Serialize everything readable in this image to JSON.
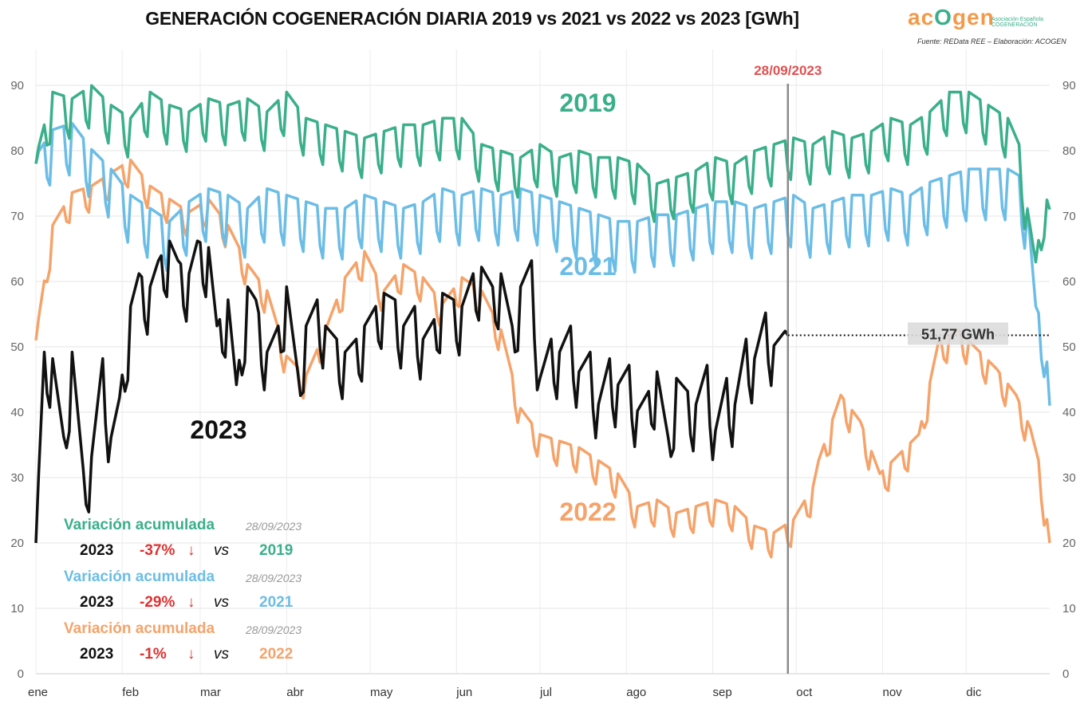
{
  "title": "GENERACIÓN COGENERACIÓN DIARIA 2019 vs 2021 vs 2022 vs 2023 [GWh]",
  "logo": {
    "text_a": "ac",
    "text_o": "O",
    "text_b": "gen",
    "subtitle": "Asociación Española COGENERACIÓN"
  },
  "source": "Fuente: REData REE – Elaboración: ACOGEN",
  "colors": {
    "y2019": "#3aaf8a",
    "y2021": "#6cbde6",
    "y2022": "#f5a36a",
    "y2023": "#111111",
    "marker": "#e05050",
    "down": "#e03030"
  },
  "chart_data": {
    "type": "line",
    "title": "GENERACIÓN COGENERACIÓN DIARIA 2019 vs 2021 vs 2022 vs 2023 [GWh]",
    "xlabel": "",
    "ylabel": "GWh",
    "ylim": [
      0,
      90
    ],
    "yticks": [
      0,
      10,
      20,
      30,
      40,
      50,
      60,
      70,
      80,
      90
    ],
    "categories": [
      "ene",
      "feb",
      "mar",
      "abr",
      "may",
      "jun",
      "jul",
      "ago",
      "sep",
      "oct",
      "nov",
      "dic"
    ],
    "x_domain_days": [
      1,
      365
    ],
    "series": [
      {
        "name": "2019",
        "x": [
          1,
          7,
          14,
          21,
          28,
          35,
          42,
          49,
          56,
          63,
          70,
          77,
          84,
          91,
          98,
          105,
          112,
          119,
          126,
          133,
          140,
          147,
          154,
          161,
          168,
          175,
          182,
          189,
          196,
          203,
          210,
          217,
          224,
          231,
          238,
          245,
          252,
          259,
          266,
          273,
          280,
          287,
          294,
          301,
          308,
          315,
          322,
          329,
          336,
          343,
          350,
          354,
          357,
          360,
          363,
          365
        ],
        "values": [
          78,
          88,
          87,
          89,
          86,
          84,
          88,
          86,
          85,
          87,
          86,
          87,
          85,
          88,
          84,
          83,
          82,
          81,
          82,
          83,
          83,
          84,
          84,
          80,
          79,
          78,
          80,
          78,
          79,
          78,
          78,
          77,
          74,
          75,
          76,
          78,
          77,
          79,
          80,
          81,
          80,
          82,
          81,
          82,
          84,
          83,
          85,
          88,
          88,
          86,
          84,
          80,
          70,
          62,
          72,
          71
        ]
      },
      {
        "name": "2021",
        "x": [
          1,
          7,
          14,
          21,
          28,
          35,
          42,
          49,
          56,
          63,
          70,
          77,
          84,
          91,
          98,
          105,
          112,
          119,
          126,
          133,
          140,
          147,
          154,
          161,
          168,
          175,
          182,
          189,
          196,
          203,
          210,
          217,
          224,
          231,
          238,
          245,
          252,
          259,
          266,
          273,
          280,
          287,
          294,
          301,
          308,
          315,
          322,
          329,
          336,
          343,
          350,
          354,
          357,
          360,
          363,
          365
        ],
        "values": [
          78,
          82,
          83,
          79,
          76,
          72,
          70,
          68,
          71,
          73,
          72,
          70,
          73,
          72,
          71,
          70,
          70,
          72,
          71,
          70,
          71,
          73,
          72,
          73,
          72,
          73,
          72,
          71,
          70,
          69,
          68,
          68,
          69,
          69,
          70,
          71,
          71,
          70,
          71,
          72,
          70,
          71,
          72,
          72,
          73,
          72,
          74,
          75,
          76,
          76,
          76,
          75,
          70,
          55,
          52,
          41
        ]
      },
      {
        "name": "2022",
        "x": [
          1,
          7,
          14,
          21,
          28,
          35,
          42,
          49,
          56,
          63,
          70,
          77,
          84,
          91,
          98,
          105,
          112,
          119,
          126,
          133,
          140,
          147,
          154,
          161,
          168,
          175,
          182,
          189,
          196,
          203,
          210,
          217,
          224,
          231,
          238,
          245,
          252,
          259,
          266,
          273,
          280,
          282,
          290,
          297,
          304,
          311,
          318,
          325,
          332,
          339,
          346,
          353,
          358,
          361,
          363,
          365
        ],
        "values": [
          51,
          68,
          73,
          74,
          76,
          78,
          74,
          72,
          70,
          72,
          68,
          62,
          58,
          48,
          45,
          52,
          60,
          64,
          58,
          62,
          60,
          56,
          60,
          58,
          52,
          40,
          36,
          35,
          34,
          32,
          30,
          25,
          26,
          24,
          25,
          26,
          25,
          22,
          21,
          23,
          28,
          32,
          42,
          38,
          30,
          33,
          36,
          50,
          52,
          49,
          46,
          42,
          37,
          32,
          26,
          20
        ]
      },
      {
        "name": "2023",
        "x": [
          1,
          4,
          7,
          11,
          14,
          18,
          21,
          25,
          28,
          31,
          35,
          38,
          42,
          45,
          49,
          52,
          56,
          59,
          63,
          66,
          70,
          73,
          77,
          80,
          84,
          88,
          91,
          95,
          98,
          102,
          105,
          109,
          112,
          116,
          119,
          123,
          126,
          130,
          133,
          137,
          140,
          144,
          147,
          151,
          154,
          158,
          161,
          165,
          168,
          172,
          175,
          179,
          182,
          186,
          189,
          193,
          196,
          200,
          203,
          207,
          210,
          214,
          217,
          221,
          224,
          228,
          231,
          235,
          238,
          242,
          245,
          249,
          252,
          256,
          259,
          263,
          266,
          271
        ],
        "values": [
          20,
          48,
          47,
          35,
          48,
          30,
          32,
          47,
          35,
          41,
          55,
          60,
          58,
          62,
          65,
          62,
          60,
          65,
          64,
          52,
          56,
          43,
          58,
          56,
          48,
          52,
          58,
          45,
          52,
          56,
          52,
          50,
          48,
          50,
          52,
          55,
          57,
          56,
          52,
          55,
          50,
          53,
          57,
          56,
          55,
          60,
          61,
          58,
          60,
          52,
          58,
          62,
          44,
          50,
          48,
          52,
          45,
          48,
          40,
          47,
          43,
          46,
          39,
          42,
          45,
          35,
          44,
          42,
          40,
          46,
          36,
          44,
          40,
          50,
          47,
          54,
          49,
          51.77
        ]
      }
    ],
    "annotations": [
      {
        "text": "28/09/2023",
        "type": "vertical-line",
        "day": 271
      },
      {
        "text": "51,77 GWh",
        "type": "horizontal-ref",
        "value": 51.77
      }
    ],
    "series_labels": [
      {
        "text": "2019",
        "series": "2019"
      },
      {
        "text": "2021",
        "series": "2021"
      },
      {
        "text": "2022",
        "series": "2022"
      },
      {
        "text": "2023",
        "series": "2023"
      }
    ]
  },
  "legend": {
    "date": "28/09/2023",
    "vs": "vs",
    "blocks": [
      {
        "heading": "Variación acumulada",
        "year": "2023",
        "pct": "-37%",
        "compare": "2019"
      },
      {
        "heading": "Variación acumulada",
        "year": "2023",
        "pct": "-29%",
        "compare": "2021"
      },
      {
        "heading": "Variación acumulada",
        "year": "2023",
        "pct": "-1%",
        "compare": "2022"
      }
    ]
  }
}
